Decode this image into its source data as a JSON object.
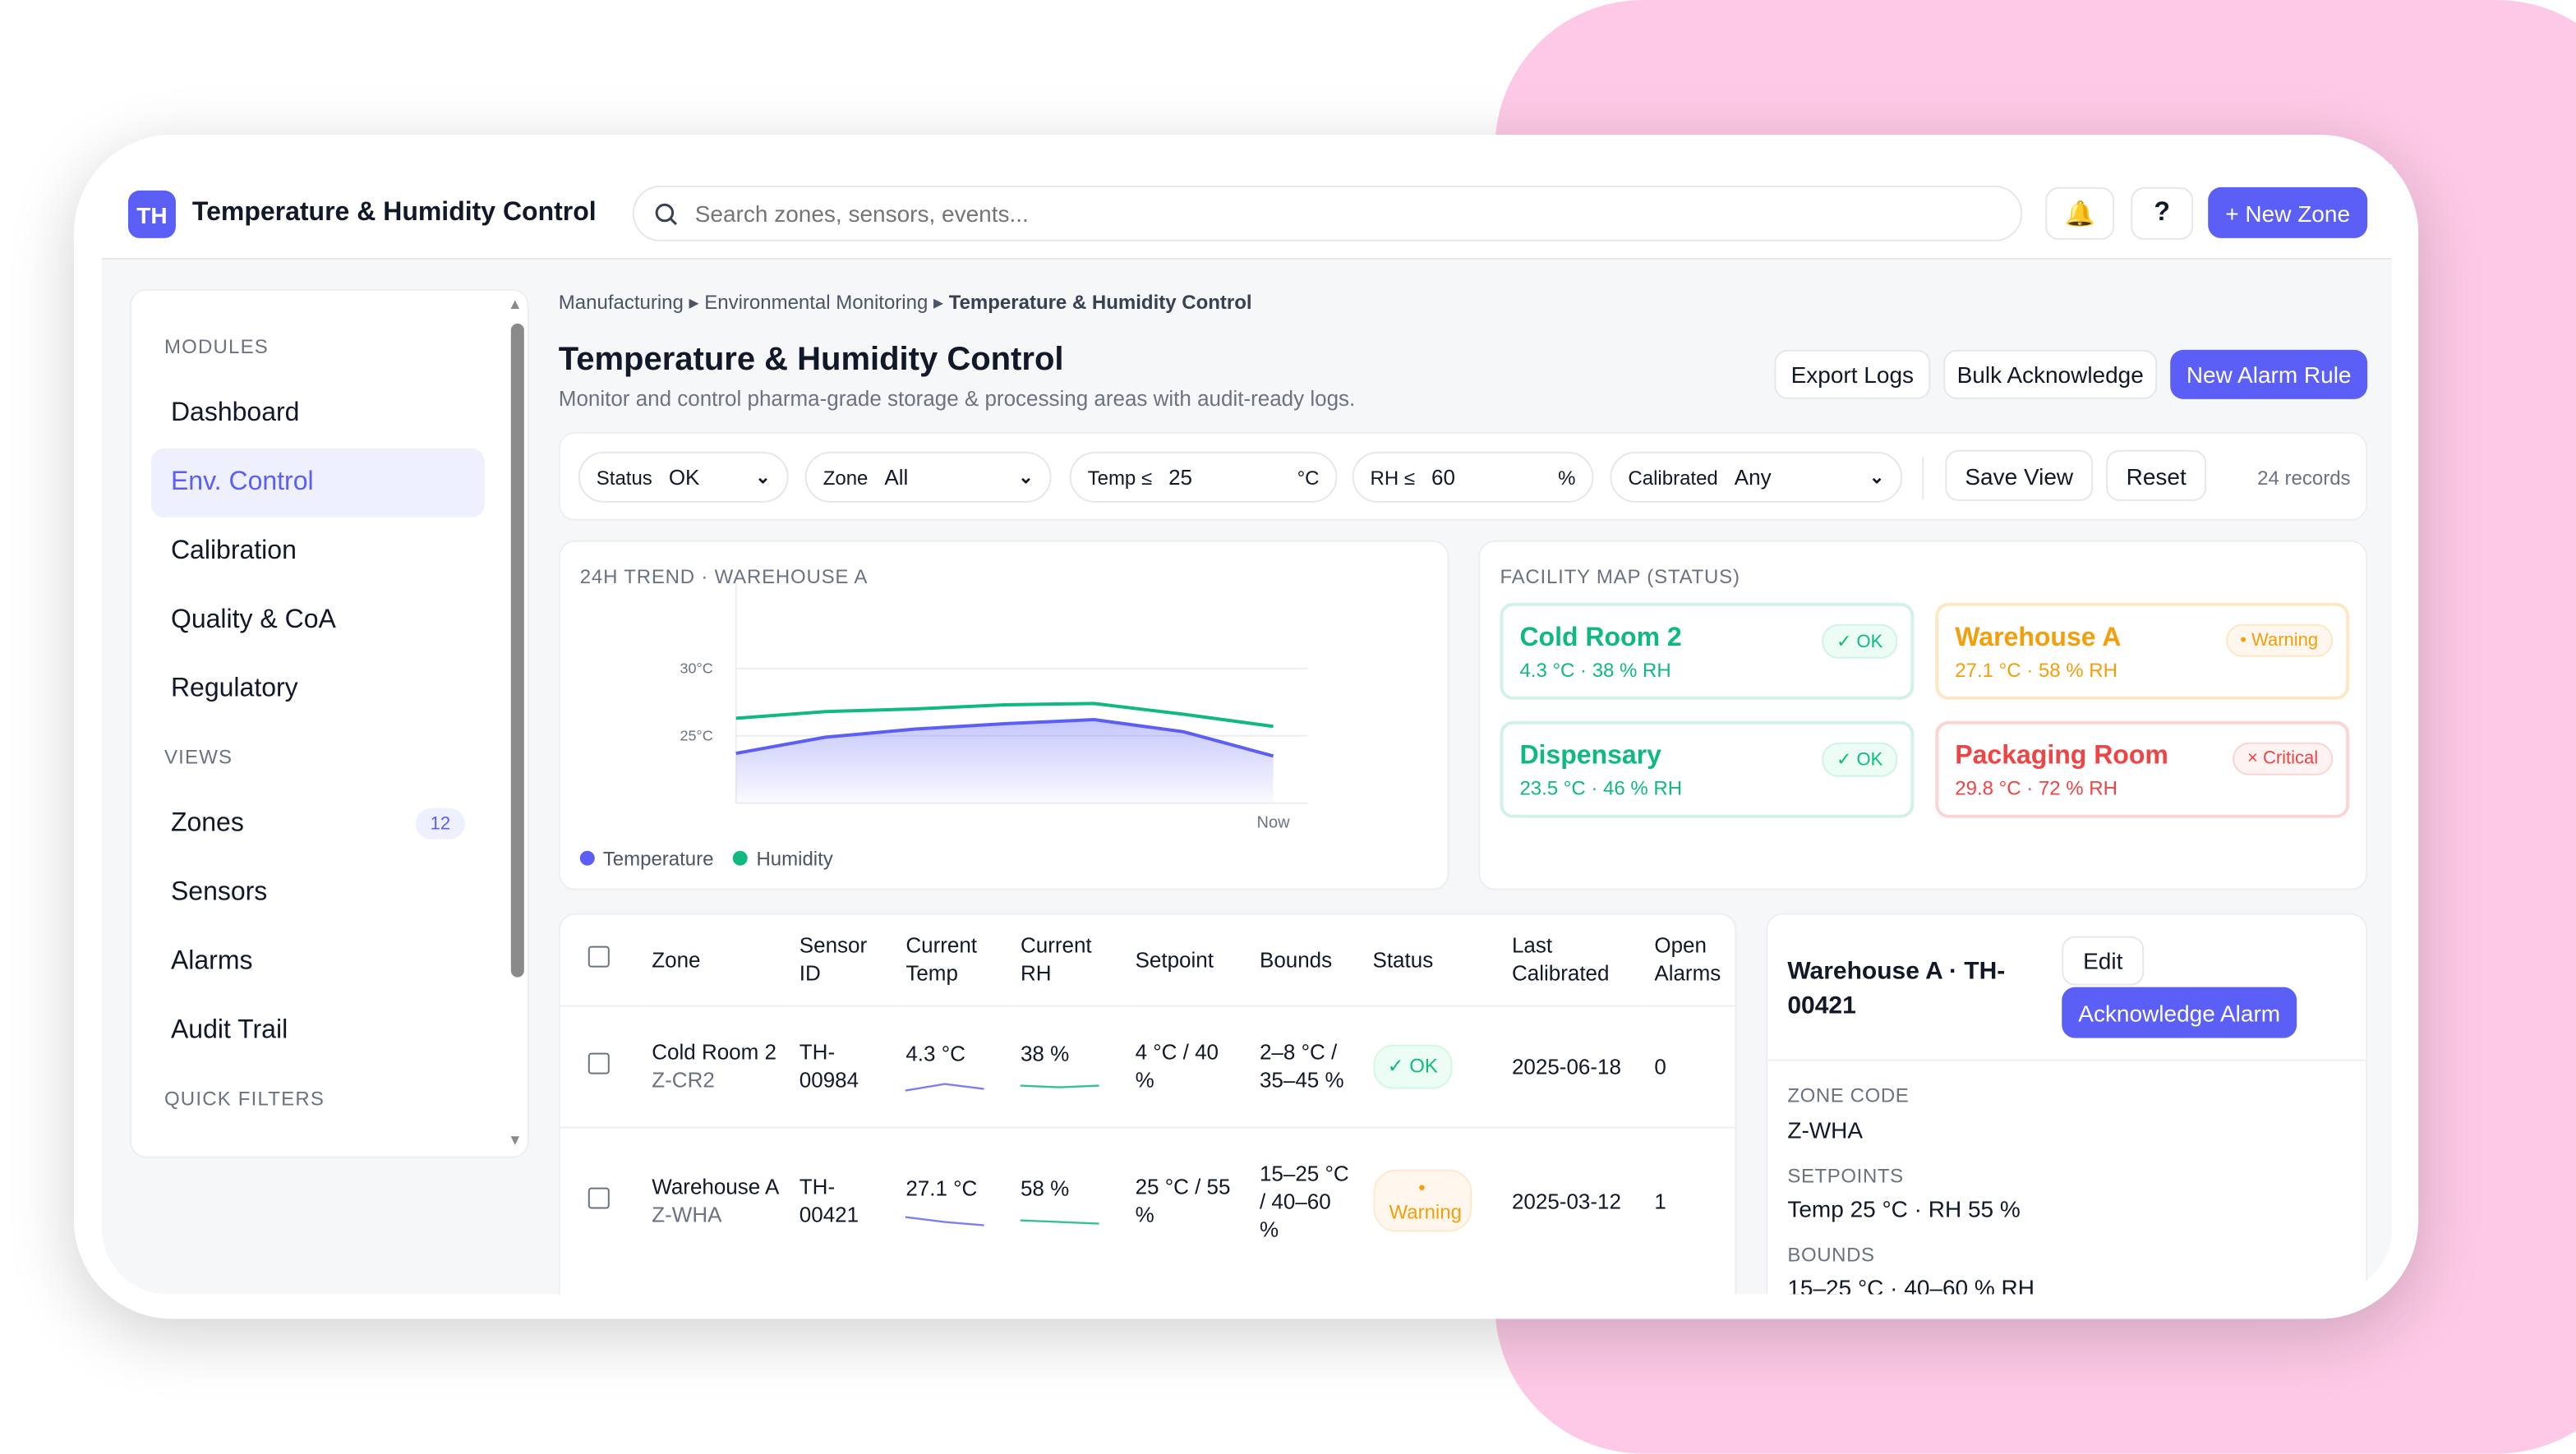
{
  "app": {
    "logo": "TH",
    "title": "Temperature & Humidity Control",
    "search_placeholder": "Search zones, sensors, events...",
    "new_zone": "+ New Zone",
    "icons": [
      "bell-icon",
      "help-icon",
      "search-icon"
    ]
  },
  "sidebar": {
    "sections": [
      {
        "label": "MODULES",
        "items": [
          {
            "label": "Dashboard"
          },
          {
            "label": "Env. Control",
            "active": true
          },
          {
            "label": "Calibration"
          },
          {
            "label": "Quality & CoA"
          },
          {
            "label": "Regulatory"
          }
        ]
      },
      {
        "label": "VIEWS",
        "items": [
          {
            "label": "Zones",
            "badge": "12"
          },
          {
            "label": "Sensors"
          },
          {
            "label": "Alarms"
          },
          {
            "label": "Audit Trail"
          }
        ]
      },
      {
        "label": "QUICK FILTERS",
        "items": []
      }
    ]
  },
  "breadcrumb": [
    "Manufacturing",
    "Environmental Monitoring",
    "Temperature & Humidity Control"
  ],
  "page": {
    "title": "Temperature & Humidity Control",
    "subtitle": "Monitor and control pharma-grade storage & processing areas with audit-ready logs.",
    "actions": {
      "export": "Export Logs",
      "bulk": "Bulk Acknowledge",
      "new_rule": "New Alarm Rule"
    }
  },
  "filters": {
    "status": {
      "label": "Status",
      "value": "OK"
    },
    "zone": {
      "label": "Zone",
      "value": "All"
    },
    "temp": {
      "label": "Temp ≤",
      "value": "25",
      "unit": "°C"
    },
    "rh": {
      "label": "RH ≤",
      "value": "60",
      "unit": "%"
    },
    "calibrated": {
      "label": "Calibrated",
      "value": "Any"
    },
    "save_view": "Save View",
    "reset": "Reset",
    "records": "24 records"
  },
  "trend": {
    "title": "24H TREND · WAREHOUSE A"
  },
  "chart_data": {
    "type": "area",
    "title": "24H TREND · WAREHOUSE A",
    "x_tick_labels": [
      "Now"
    ],
    "y_tick_labels": [
      "30°C",
      "25°C"
    ],
    "ylim": [
      20,
      30
    ],
    "grid": true,
    "legend": "bottom-left",
    "x": [
      0,
      1,
      2,
      3,
      4,
      5,
      6
    ],
    "series": [
      {
        "name": "Temperature",
        "color": "#5b5ff6",
        "values": [
          23.7,
          24.9,
          25.5,
          25.9,
          26.2,
          25.3,
          23.5
        ],
        "fill": true
      },
      {
        "name": "Humidity",
        "color": "#10b981",
        "values": [
          26.3,
          26.8,
          27.0,
          27.3,
          27.4,
          26.6,
          25.7
        ]
      }
    ]
  },
  "facility": {
    "title": "FACILITY MAP (STATUS)",
    "zones": [
      {
        "name": "Cold Room 2",
        "metrics": "4.3 °C · 38 % RH",
        "status": "✓ OK",
        "color": "#10b981",
        "border": "#d1f2e4",
        "bg": "#ecfdf5"
      },
      {
        "name": "Warehouse A",
        "metrics": "27.1 °C · 58 % RH",
        "status": "• Warning",
        "color": "#f59e0b",
        "border": "#fde7c4",
        "bg": "#fff7ed"
      },
      {
        "name": "Dispensary",
        "metrics": "23.5 °C · 46 % RH",
        "status": "✓ OK",
        "color": "#10b981",
        "border": "#d1f2e4",
        "bg": "#ecfdf5"
      },
      {
        "name": "Packaging Room",
        "metrics": "29.8 °C · 72 % RH",
        "status": "× Critical",
        "color": "#ef4444",
        "border": "#fbd5d5",
        "bg": "#fef2f2"
      }
    ]
  },
  "table": {
    "columns": [
      "Zone",
      "Sensor ID",
      "Current Temp",
      "Current RH",
      "Setpoint",
      "Bounds",
      "Status",
      "Last Calibrated",
      "Open Alarms"
    ],
    "rows": [
      {
        "zone": "Cold Room 2",
        "code": "Z-CR2",
        "sensor": "TH-00984",
        "temp": "4.3 °C",
        "rh": "38 %",
        "setpoint": "4 °C / 40 %",
        "bounds": "2–8 °C / 35–45 %",
        "status": "✓ OK",
        "calibrated": "2025-06-18",
        "alarms": "0"
      },
      {
        "zone": "Warehouse A",
        "code": "Z-WHA",
        "sensor": "TH-00421",
        "temp": "27.1 °C",
        "rh": "58 %",
        "setpoint": "25 °C / 55 %",
        "bounds": "15–25 °C / 40–60 %",
        "status": "• Warning",
        "calibrated": "2025-03-12",
        "alarms": "1"
      }
    ]
  },
  "detail": {
    "title": "Warehouse A · TH-00421",
    "edit": "Edit",
    "ack": "Acknowledge Alarm",
    "fields": [
      {
        "label": "ZONE CODE",
        "value": "Z-WHA"
      },
      {
        "label": "SETPOINTS",
        "value": "Temp 25 °C · RH 55 %"
      },
      {
        "label": "BOUNDS",
        "value": "15–25 °C · 40–60 % RH"
      }
    ]
  }
}
